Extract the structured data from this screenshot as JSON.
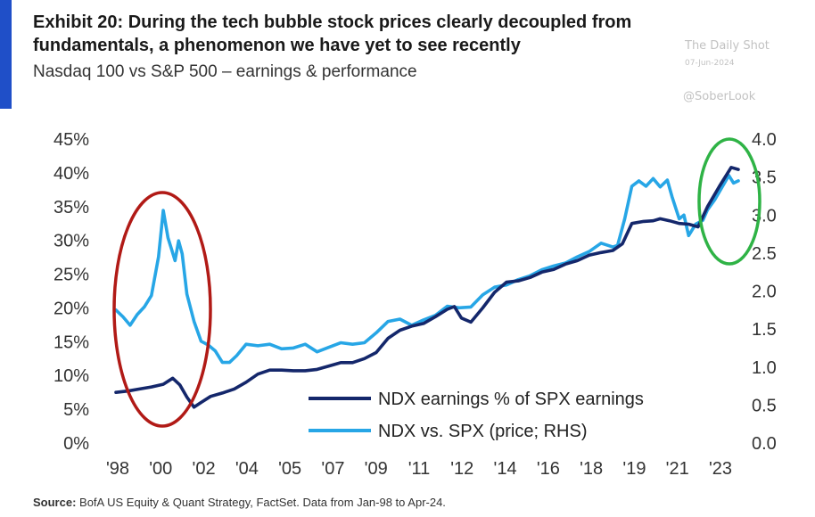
{
  "header": {
    "title": "Exhibit 20: During the tech bubble stock prices clearly decoupled from fundamentals, a phenomenon we have yet to see recently",
    "subtitle": "Nasdaq 100 vs S&P 500 – earnings & performance"
  },
  "watermark": {
    "brand": "The Daily Shot",
    "date": "07-Jun-2024",
    "handle": "@SoberLook"
  },
  "footer": {
    "source_label": "Source:",
    "source_text": " BofA US Equity & Quant Strategy, FactSet. Data from Jan-98 to Apr-24."
  },
  "colors": {
    "accent": "#1f4fc8",
    "ndx_earnings": "#14276b",
    "ndx_price": "#27a6e6",
    "circle_bubble": "#b11a16",
    "circle_recent": "#2fb346"
  },
  "chart_data": {
    "type": "line",
    "x_ticks": [
      "'98",
      "'00",
      "'02",
      "'04",
      "'05",
      "'07",
      "'09",
      "'11",
      "'12",
      "'14",
      "'16",
      "'18",
      "'19",
      "'21",
      "'23"
    ],
    "xlim": [
      1998.0,
      2024.3
    ],
    "y_left": {
      "ticks": [
        "0%",
        "5%",
        "10%",
        "15%",
        "20%",
        "25%",
        "30%",
        "35%",
        "40%",
        "45%"
      ],
      "range": [
        0,
        45
      ]
    },
    "y_right": {
      "ticks": [
        "0.0",
        "0.5",
        "1.0",
        "1.5",
        "2.0",
        "2.5",
        "3.0",
        "3.5",
        "4.0"
      ],
      "range": [
        0,
        4
      ]
    },
    "legend_position": "bottom-center",
    "grid": false,
    "series": [
      {
        "name": "NDX earnings % of SPX earnings",
        "axis": "left",
        "points": [
          [
            1998.0,
            7.5
          ],
          [
            1998.5,
            7.7
          ],
          [
            1999.0,
            8.0
          ],
          [
            1999.5,
            8.3
          ],
          [
            2000.0,
            8.7
          ],
          [
            2000.4,
            9.6
          ],
          [
            2000.7,
            8.6
          ],
          [
            2001.0,
            6.8
          ],
          [
            2001.3,
            5.3
          ],
          [
            2001.6,
            6.0
          ],
          [
            2002.0,
            6.9
          ],
          [
            2002.5,
            7.4
          ],
          [
            2003.0,
            8.0
          ],
          [
            2003.5,
            9.0
          ],
          [
            2004.0,
            10.2
          ],
          [
            2004.5,
            10.8
          ],
          [
            2005.0,
            10.8
          ],
          [
            2005.5,
            10.7
          ],
          [
            2006.0,
            10.7
          ],
          [
            2006.5,
            10.9
          ],
          [
            2007.0,
            11.4
          ],
          [
            2007.5,
            11.9
          ],
          [
            2008.0,
            11.9
          ],
          [
            2008.5,
            12.5
          ],
          [
            2009.0,
            13.4
          ],
          [
            2009.5,
            15.5
          ],
          [
            2010.0,
            16.7
          ],
          [
            2010.5,
            17.3
          ],
          [
            2011.0,
            17.7
          ],
          [
            2011.5,
            18.7
          ],
          [
            2012.0,
            19.8
          ],
          [
            2012.3,
            20.2
          ],
          [
            2012.6,
            18.5
          ],
          [
            2013.0,
            17.9
          ],
          [
            2013.5,
            20.0
          ],
          [
            2014.0,
            22.3
          ],
          [
            2014.5,
            23.8
          ],
          [
            2015.0,
            24.0
          ],
          [
            2015.5,
            24.5
          ],
          [
            2016.0,
            25.3
          ],
          [
            2016.5,
            25.7
          ],
          [
            2017.0,
            26.5
          ],
          [
            2017.5,
            27.0
          ],
          [
            2018.0,
            27.8
          ],
          [
            2018.5,
            28.2
          ],
          [
            2019.0,
            28.5
          ],
          [
            2019.4,
            29.5
          ],
          [
            2019.8,
            32.5
          ],
          [
            2020.3,
            32.8
          ],
          [
            2020.7,
            32.9
          ],
          [
            2021.0,
            33.2
          ],
          [
            2021.4,
            32.9
          ],
          [
            2021.8,
            32.5
          ],
          [
            2022.2,
            32.4
          ],
          [
            2022.6,
            32.0
          ],
          [
            2023.0,
            35.0
          ],
          [
            2023.5,
            38.0
          ],
          [
            2024.0,
            40.8
          ],
          [
            2024.3,
            40.5
          ]
        ]
      },
      {
        "name": "NDX vs. SPX (price; RHS)",
        "axis": "right",
        "points": [
          [
            1998.0,
            1.75
          ],
          [
            1998.3,
            1.66
          ],
          [
            1998.6,
            1.55
          ],
          [
            1998.9,
            1.69
          ],
          [
            1999.2,
            1.79
          ],
          [
            1999.5,
            1.94
          ],
          [
            1999.8,
            2.45
          ],
          [
            2000.0,
            3.06
          ],
          [
            2000.2,
            2.7
          ],
          [
            2000.35,
            2.55
          ],
          [
            2000.5,
            2.4
          ],
          [
            2000.65,
            2.66
          ],
          [
            2000.8,
            2.49
          ],
          [
            2001.0,
            1.96
          ],
          [
            2001.3,
            1.6
          ],
          [
            2001.6,
            1.34
          ],
          [
            2001.9,
            1.29
          ],
          [
            2002.2,
            1.21
          ],
          [
            2002.5,
            1.06
          ],
          [
            2002.8,
            1.06
          ],
          [
            2003.1,
            1.15
          ],
          [
            2003.5,
            1.3
          ],
          [
            2004.0,
            1.28
          ],
          [
            2004.5,
            1.3
          ],
          [
            2005.0,
            1.24
          ],
          [
            2005.5,
            1.25
          ],
          [
            2006.0,
            1.3
          ],
          [
            2006.5,
            1.2
          ],
          [
            2007.0,
            1.26
          ],
          [
            2007.5,
            1.32
          ],
          [
            2008.0,
            1.3
          ],
          [
            2008.5,
            1.32
          ],
          [
            2009.0,
            1.45
          ],
          [
            2009.5,
            1.6
          ],
          [
            2010.0,
            1.63
          ],
          [
            2010.5,
            1.55
          ],
          [
            2011.0,
            1.62
          ],
          [
            2011.5,
            1.68
          ],
          [
            2012.0,
            1.8
          ],
          [
            2012.5,
            1.78
          ],
          [
            2013.0,
            1.79
          ],
          [
            2013.5,
            1.95
          ],
          [
            2014.0,
            2.05
          ],
          [
            2014.5,
            2.08
          ],
          [
            2015.0,
            2.15
          ],
          [
            2015.5,
            2.2
          ],
          [
            2016.0,
            2.28
          ],
          [
            2016.5,
            2.33
          ],
          [
            2017.0,
            2.37
          ],
          [
            2017.5,
            2.45
          ],
          [
            2018.0,
            2.52
          ],
          [
            2018.5,
            2.63
          ],
          [
            2019.0,
            2.58
          ],
          [
            2019.2,
            2.6
          ],
          [
            2019.5,
            2.95
          ],
          [
            2019.8,
            3.38
          ],
          [
            2020.1,
            3.45
          ],
          [
            2020.4,
            3.38
          ],
          [
            2020.7,
            3.48
          ],
          [
            2021.0,
            3.37
          ],
          [
            2021.3,
            3.46
          ],
          [
            2021.5,
            3.24
          ],
          [
            2021.8,
            2.95
          ],
          [
            2022.0,
            3.0
          ],
          [
            2022.2,
            2.73
          ],
          [
            2022.5,
            2.88
          ],
          [
            2022.8,
            2.93
          ],
          [
            2023.0,
            3.07
          ],
          [
            2023.3,
            3.2
          ],
          [
            2023.6,
            3.36
          ],
          [
            2023.9,
            3.52
          ],
          [
            2024.1,
            3.42
          ],
          [
            2024.3,
            3.45
          ]
        ]
      }
    ],
    "annotations": [
      {
        "type": "ellipse",
        "color": "red",
        "x_range": [
          1998.0,
          2001.6
        ]
      },
      {
        "type": "ellipse",
        "color": "green",
        "x_range": [
          2022.2,
          2024.3
        ]
      }
    ]
  }
}
